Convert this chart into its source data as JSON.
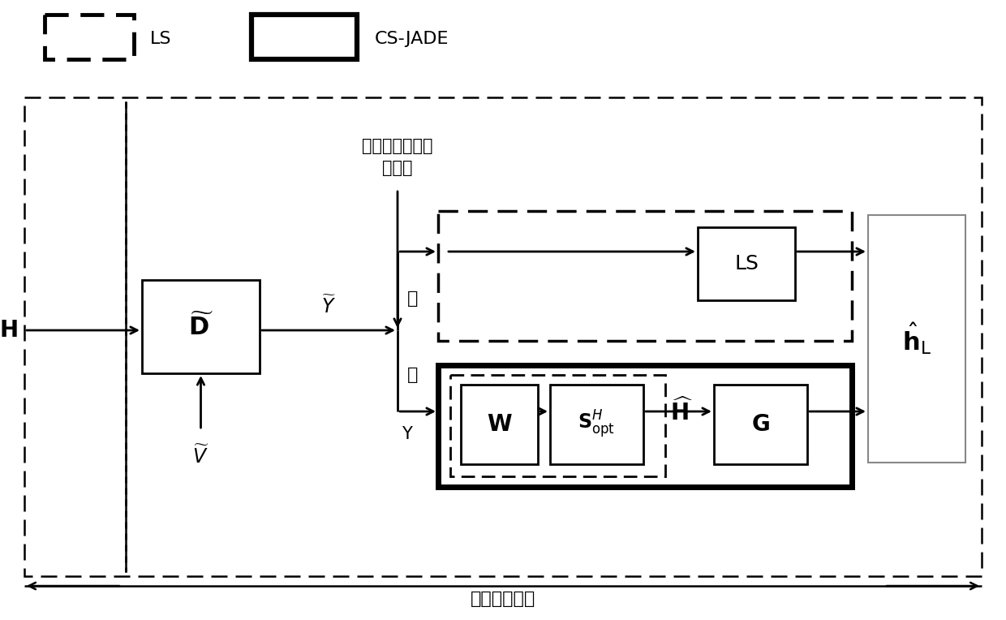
{
  "bg_color": "#ffffff",
  "legend_dashed_label": "LS",
  "legend_solid_label": "CS-JADE",
  "D_tilde_label": "$\\widetilde{\\mathbf{D}}$",
  "Y_tilde_label": "$\\widetilde{Y}$",
  "V_tilde_label": "$\\widetilde{V}$",
  "H_label": "$\\mathbf{H}$",
  "h_hat_label": "$\\hat{\\mathbf{h}}_\\mathrm{L}$",
  "LS_box_label": "LS",
  "W_label": "$\\mathbf{W}$",
  "S_opt_label": "$\\mathbf{S}_{\\mathrm{opt}}^{H}$",
  "H_hat_label": "$\\widehat{\\mathbf{H}}$",
  "G_label": "$\\mathbf{G}$",
  "detect_text1": "检测导频攻击是",
  "detect_text2": "否发生",
  "no_label": "否",
  "yes_label": "是",
  "Y_label": "Y",
  "framework_label": "发明方案框架"
}
